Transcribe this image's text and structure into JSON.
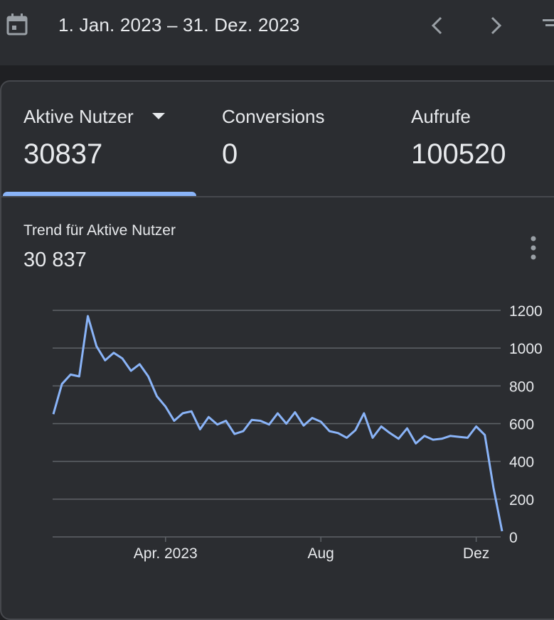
{
  "header": {
    "calendar_icon": "calendar-icon",
    "date_range": "1. Jan. 2023 – 31. Dez. 2023",
    "prev_icon": "chevron-left-icon",
    "next_icon": "chevron-right-icon"
  },
  "tabs": [
    {
      "label": "Aktive Nutzer",
      "value": "30837",
      "selected": true,
      "has_dropdown": true
    },
    {
      "label": "Conversions",
      "value": "0"
    },
    {
      "label": "Aufrufe",
      "value": "100520"
    }
  ],
  "trend": {
    "title": "Trend für Aktive Nutzer",
    "value": "30 837",
    "more_icon": "more-vert-icon"
  },
  "colors": {
    "line": "#8ab4f8",
    "tab_indicator": "#8ab4f8",
    "background": "#2b2d31",
    "grid": "#5f6368"
  },
  "chart_data": {
    "type": "line",
    "grid": true,
    "y_axis_side": "right",
    "ylim": [
      0,
      1200
    ],
    "y_ticks": [
      0,
      200,
      400,
      600,
      800,
      1000,
      1200
    ],
    "x_ticks": [
      {
        "label": "Apr. 2023",
        "index": 13
      },
      {
        "label": "Aug",
        "index": 31
      },
      {
        "label": "Dez",
        "index": 49
      }
    ],
    "series": [
      {
        "values": [
          650,
          810,
          860,
          850,
          1170,
          1010,
          935,
          975,
          945,
          880,
          915,
          850,
          745,
          690,
          615,
          655,
          665,
          570,
          635,
          595,
          615,
          545,
          560,
          620,
          615,
          595,
          655,
          600,
          660,
          590,
          630,
          610,
          560,
          550,
          525,
          565,
          655,
          525,
          585,
          550,
          520,
          575,
          495,
          535,
          515,
          520,
          535,
          530,
          525,
          585,
          540,
          260,
          30
        ]
      }
    ]
  }
}
